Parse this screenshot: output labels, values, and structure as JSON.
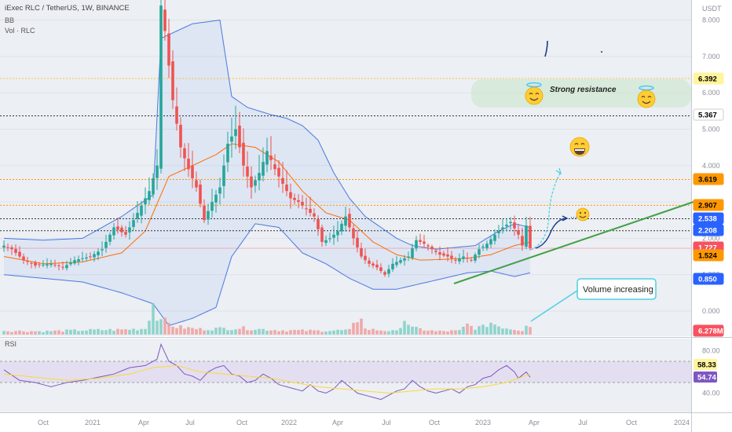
{
  "header": {
    "symbol": "iExec RLC / TetherUS, 1W, BINANCE",
    "ind1": "BB",
    "ind2": "Vol · RLC",
    "rsi_label": "RSI"
  },
  "price_axis": {
    "unit": "USDT",
    "ticks": [
      "8.000",
      "7.000",
      "6.000",
      "5.000",
      "4.000",
      "3.000",
      "2.000",
      "1.000",
      "0.000"
    ]
  },
  "rsi_axis": {
    "ticks": [
      "80.00",
      "40.00"
    ]
  },
  "time_axis": {
    "ticks": [
      "Oct",
      "2021",
      "Apr",
      "Jul",
      "Oct",
      "2022",
      "Apr",
      "Jul",
      "Oct",
      "2023",
      "Apr",
      "Jul",
      "Oct",
      "2024"
    ]
  },
  "price_tags": [
    {
      "label": "6.392",
      "bg": "#fff59d",
      "fg": "#000000"
    },
    {
      "label": "5.367",
      "bg": "#ffffff",
      "fg": "#000000"
    },
    {
      "label": "3.619",
      "bg": "#ff9800",
      "fg": "#000000"
    },
    {
      "label": "2.907",
      "bg": "#ff9800",
      "fg": "#000000"
    },
    {
      "label": "2.538",
      "bg": "#2962ff",
      "fg": "#ffffff"
    },
    {
      "label": "2.208",
      "bg": "#2962ff",
      "fg": "#ffffff"
    },
    {
      "label": "1.727",
      "bg": "#f7525f",
      "fg": "#ffffff"
    },
    {
      "label": "1.524",
      "bg": "#ff9800",
      "fg": "#000000"
    },
    {
      "label": "0.850",
      "bg": "#2962ff",
      "fg": "#ffffff"
    },
    {
      "label": "6.278M",
      "bg": "#f7525f",
      "fg": "#ffffff"
    }
  ],
  "rsi_tags": [
    {
      "label": "58.33",
      "bg": "#fff59d",
      "fg": "#000000"
    },
    {
      "label": "54.74",
      "bg": "#7e57c2",
      "fg": "#ffffff"
    }
  ],
  "annotations": {
    "strong_resistance": "Strong resistance",
    "volume_increasing": "Volume increasing"
  },
  "colors": {
    "up": "#26a69a",
    "down": "#ef5350",
    "bb_band": "#4a78e0",
    "bb_basis": "#ff6d00",
    "bb_fill": "#2962ff",
    "rsi_line": "#7e57c2",
    "rsi_ma": "#fdd835",
    "trendline": "#43a047",
    "arrow_cyan": "#4dd0e1",
    "arrow_navy": "#1a3a8a"
  },
  "chart_data": {
    "type": "candlestick",
    "title": "iExec RLC / TetherUS, 1W, BINANCE",
    "ylim": [
      0,
      8.4
    ],
    "rsi_ylim": [
      20,
      90
    ],
    "horizontal_levels": [
      {
        "value": 6.392,
        "style": "dotted",
        "color": "#f9c33c"
      },
      {
        "value": 5.367,
        "style": "dotted",
        "color": "#333333"
      },
      {
        "value": 3.619,
        "style": "dotted",
        "color": "#ff9800"
      },
      {
        "value": 2.907,
        "style": "dotted",
        "color": "#ff9800"
      },
      {
        "value": 2.538,
        "style": "dotted",
        "color": "#333333"
      },
      {
        "value": 2.208,
        "style": "dotted",
        "color": "#333333"
      }
    ],
    "rsi_levels": [
      70,
      50
    ],
    "trendline": {
      "from": [
        1.36,
        "2022-11"
      ],
      "to": [
        2.9,
        "2024-01"
      ]
    },
    "price_anchors": [
      [
        0,
        1.8
      ],
      [
        2,
        1.7
      ],
      [
        5,
        1.4
      ],
      [
        8,
        1.25
      ],
      [
        12,
        1.3
      ],
      [
        15,
        1.2
      ],
      [
        18,
        1.4
      ],
      [
        22,
        1.5
      ],
      [
        25,
        1.7
      ],
      [
        28,
        2.3
      ],
      [
        31,
        2.1
      ],
      [
        34,
        2.7
      ],
      [
        37,
        3.3
      ],
      [
        39,
        4.0
      ],
      [
        40,
        8.4
      ],
      [
        41,
        7.7
      ],
      [
        43,
        5.8
      ],
      [
        45,
        4.5
      ],
      [
        47,
        3.9
      ],
      [
        49,
        3.4
      ],
      [
        51,
        2.5
      ],
      [
        53,
        3.0
      ],
      [
        55,
        3.4
      ],
      [
        57,
        4.6
      ],
      [
        59,
        5.0
      ],
      [
        61,
        4.0
      ],
      [
        63,
        3.4
      ],
      [
        65,
        3.8
      ],
      [
        67,
        4.4
      ],
      [
        69,
        3.9
      ],
      [
        71,
        3.5
      ],
      [
        73,
        3.1
      ],
      [
        75,
        3.0
      ],
      [
        77,
        2.8
      ],
      [
        79,
        2.6
      ],
      [
        81,
        1.9
      ],
      [
        83,
        2.0
      ],
      [
        85,
        2.2
      ],
      [
        87,
        2.6
      ],
      [
        89,
        2.0
      ],
      [
        91,
        1.5
      ],
      [
        93,
        1.3
      ],
      [
        95,
        1.2
      ],
      [
        97,
        1.0
      ],
      [
        99,
        1.3
      ],
      [
        101,
        1.4
      ],
      [
        103,
        1.5
      ],
      [
        105,
        1.95
      ],
      [
        107,
        1.85
      ],
      [
        109,
        1.7
      ],
      [
        111,
        1.55
      ],
      [
        113,
        1.5
      ],
      [
        115,
        1.4
      ],
      [
        117,
        1.5
      ],
      [
        119,
        1.4
      ],
      [
        121,
        1.7
      ],
      [
        123,
        1.85
      ],
      [
        125,
        2.1
      ],
      [
        127,
        2.3
      ],
      [
        129,
        2.45
      ],
      [
        131,
        2.1
      ],
      [
        132,
        1.8
      ],
      [
        133,
        2.35
      ],
      [
        134,
        1.73
      ]
    ],
    "bb_upper_anchors": [
      [
        0,
        2.0
      ],
      [
        10,
        1.95
      ],
      [
        20,
        2.0
      ],
      [
        30,
        2.6
      ],
      [
        38,
        3.2
      ],
      [
        40,
        7.5
      ],
      [
        48,
        7.9
      ],
      [
        55,
        8.0
      ],
      [
        58,
        5.9
      ],
      [
        62,
        5.6
      ],
      [
        68,
        5.4
      ],
      [
        72,
        5.3
      ],
      [
        76,
        5.1
      ],
      [
        80,
        4.7
      ],
      [
        84,
        3.8
      ],
      [
        88,
        3.1
      ],
      [
        92,
        2.6
      ],
      [
        96,
        2.3
      ],
      [
        100,
        2.0
      ],
      [
        104,
        1.8
      ],
      [
        110,
        1.7
      ],
      [
        120,
        1.8
      ],
      [
        126,
        2.2
      ],
      [
        130,
        2.4
      ],
      [
        134,
        2.3
      ]
    ],
    "bb_basis_anchors": [
      [
        0,
        1.5
      ],
      [
        10,
        1.3
      ],
      [
        20,
        1.35
      ],
      [
        30,
        1.6
      ],
      [
        36,
        2.2
      ],
      [
        42,
        3.7
      ],
      [
        48,
        4.0
      ],
      [
        54,
        4.3
      ],
      [
        58,
        4.6
      ],
      [
        64,
        4.5
      ],
      [
        70,
        4.1
      ],
      [
        76,
        3.3
      ],
      [
        82,
        2.7
      ],
      [
        88,
        2.5
      ],
      [
        94,
        1.9
      ],
      [
        100,
        1.55
      ],
      [
        106,
        1.4
      ],
      [
        112,
        1.42
      ],
      [
        118,
        1.45
      ],
      [
        124,
        1.55
      ],
      [
        130,
        1.8
      ],
      [
        134,
        1.9
      ]
    ],
    "bb_lower_anchors": [
      [
        0,
        1.0
      ],
      [
        10,
        0.9
      ],
      [
        20,
        0.8
      ],
      [
        30,
        0.5
      ],
      [
        38,
        0.2
      ],
      [
        42,
        -0.4
      ],
      [
        48,
        -0.2
      ],
      [
        54,
        0.1
      ],
      [
        58,
        1.5
      ],
      [
        64,
        2.4
      ],
      [
        70,
        2.3
      ],
      [
        76,
        1.6
      ],
      [
        82,
        1.3
      ],
      [
        88,
        0.9
      ],
      [
        94,
        0.6
      ],
      [
        100,
        0.6
      ],
      [
        106,
        0.75
      ],
      [
        112,
        0.9
      ],
      [
        118,
        1.05
      ],
      [
        124,
        1.1
      ],
      [
        130,
        0.95
      ],
      [
        134,
        1.05
      ]
    ],
    "rsi_anchors": [
      [
        0,
        62
      ],
      [
        4,
        52
      ],
      [
        8,
        50
      ],
      [
        12,
        46
      ],
      [
        16,
        50
      ],
      [
        20,
        52
      ],
      [
        24,
        55
      ],
      [
        28,
        58
      ],
      [
        32,
        64
      ],
      [
        36,
        66
      ],
      [
        39,
        72
      ],
      [
        40,
        86
      ],
      [
        42,
        70
      ],
      [
        44,
        66
      ],
      [
        46,
        58
      ],
      [
        48,
        56
      ],
      [
        50,
        52
      ],
      [
        52,
        60
      ],
      [
        54,
        64
      ],
      [
        56,
        66
      ],
      [
        58,
        58
      ],
      [
        60,
        56
      ],
      [
        62,
        50
      ],
      [
        64,
        52
      ],
      [
        66,
        58
      ],
      [
        68,
        54
      ],
      [
        70,
        48
      ],
      [
        72,
        46
      ],
      [
        74,
        44
      ],
      [
        76,
        42
      ],
      [
        78,
        48
      ],
      [
        80,
        42
      ],
      [
        82,
        40
      ],
      [
        84,
        44
      ],
      [
        86,
        52
      ],
      [
        88,
        46
      ],
      [
        90,
        40
      ],
      [
        92,
        38
      ],
      [
        94,
        36
      ],
      [
        96,
        34
      ],
      [
        98,
        38
      ],
      [
        100,
        42
      ],
      [
        102,
        44
      ],
      [
        104,
        52
      ],
      [
        106,
        46
      ],
      [
        108,
        42
      ],
      [
        110,
        40
      ],
      [
        112,
        42
      ],
      [
        114,
        44
      ],
      [
        116,
        40
      ],
      [
        118,
        46
      ],
      [
        120,
        48
      ],
      [
        122,
        54
      ],
      [
        124,
        56
      ],
      [
        126,
        62
      ],
      [
        128,
        66
      ],
      [
        130,
        60
      ],
      [
        131,
        54
      ],
      [
        133,
        60
      ],
      [
        134,
        55
      ]
    ],
    "rsi_ma_anchors": [
      [
        0,
        58
      ],
      [
        8,
        55
      ],
      [
        16,
        52
      ],
      [
        24,
        54
      ],
      [
        32,
        58
      ],
      [
        38,
        64
      ],
      [
        44,
        66
      ],
      [
        50,
        60
      ],
      [
        56,
        58
      ],
      [
        62,
        56
      ],
      [
        68,
        54
      ],
      [
        74,
        50
      ],
      [
        80,
        46
      ],
      [
        86,
        44
      ],
      [
        92,
        42
      ],
      [
        98,
        40
      ],
      [
        104,
        42
      ],
      [
        110,
        44
      ],
      [
        116,
        44
      ],
      [
        122,
        46
      ],
      [
        128,
        50
      ],
      [
        134,
        58
      ]
    ],
    "volume_anchors": [
      [
        0,
        0.35
      ],
      [
        10,
        0.3
      ],
      [
        20,
        0.4
      ],
      [
        30,
        0.45
      ],
      [
        36,
        0.55
      ],
      [
        38,
        2.8
      ],
      [
        39,
        1.5
      ],
      [
        40,
        2.0
      ],
      [
        41,
        1.2
      ],
      [
        42,
        1.0
      ],
      [
        44,
        0.7
      ],
      [
        50,
        0.5
      ],
      [
        60,
        0.6
      ],
      [
        70,
        0.4
      ],
      [
        80,
        0.35
      ],
      [
        88,
        0.4
      ],
      [
        91,
        1.8
      ],
      [
        92,
        0.5
      ],
      [
        100,
        0.3
      ],
      [
        102,
        1.4
      ],
      [
        104,
        0.6
      ],
      [
        110,
        0.3
      ],
      [
        116,
        0.35
      ],
      [
        118,
        0.9
      ],
      [
        120,
        0.6
      ],
      [
        122,
        0.7
      ],
      [
        124,
        1.1
      ],
      [
        126,
        0.8
      ],
      [
        128,
        0.6
      ],
      [
        130,
        0.5
      ],
      [
        132,
        0.4
      ],
      [
        133,
        1.0
      ],
      [
        134,
        0.8
      ]
    ]
  }
}
